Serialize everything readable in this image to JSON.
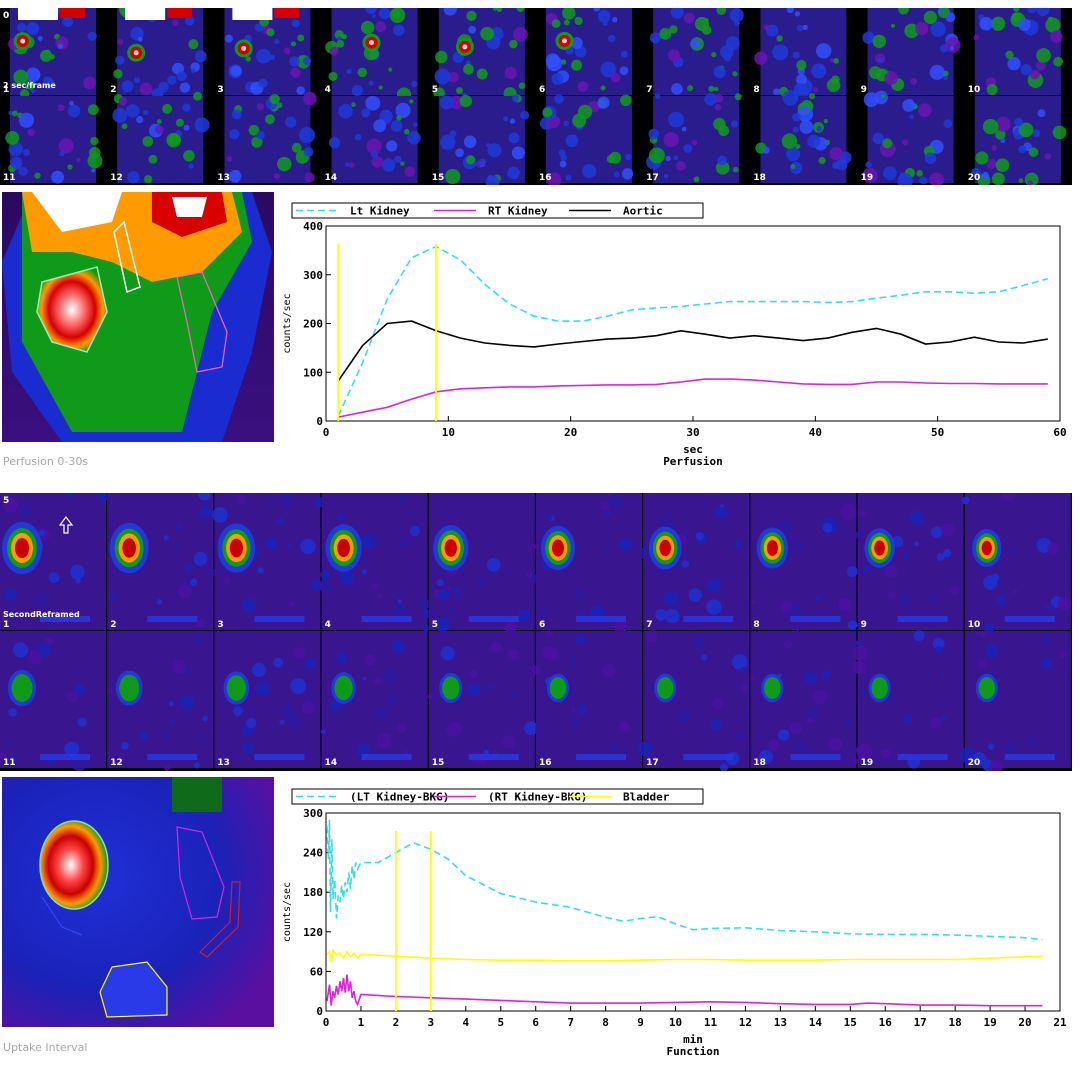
{
  "perfusion_strip": {
    "frame_rate_label": "2 sec/frame",
    "count_label": "0",
    "frames": [
      "1",
      "2",
      "3",
      "4",
      "5",
      "6",
      "7",
      "8",
      "9",
      "10",
      "11",
      "12",
      "13",
      "14",
      "15",
      "16",
      "17",
      "18",
      "19",
      "20"
    ]
  },
  "function_strip": {
    "label": "SecondReframed",
    "count_label": "5",
    "frames": [
      "1",
      "2",
      "3",
      "4",
      "5",
      "6",
      "7",
      "8",
      "9",
      "10",
      "11",
      "12",
      "13",
      "14",
      "15",
      "16",
      "17",
      "18",
      "19",
      "20"
    ]
  },
  "perfusion_roi_caption": "Perfusion 0-30s",
  "uptake_roi_caption": "Uptake Interval",
  "colors": {
    "cyan": "#33e0e8",
    "magenta": "#e020e0",
    "black": "#000000",
    "yellow": "#ffff00"
  },
  "chart_data": [
    {
      "type": "line",
      "title": "Perfusion",
      "xlabel": "sec",
      "ylabel": "counts/sec",
      "xlim": [
        0,
        60
      ],
      "ylim": [
        0,
        400
      ],
      "xticks": [
        0,
        10,
        20,
        30,
        40,
        50,
        60
      ],
      "yticks": [
        0,
        100,
        200,
        300,
        400
      ],
      "markers": [
        1,
        9
      ],
      "series": [
        {
          "name": "Lt Kidney",
          "style": "dashed",
          "color": "#33e0e8",
          "x": [
            1,
            3,
            5,
            7,
            9,
            11,
            13,
            15,
            17,
            19,
            21,
            23,
            25,
            27,
            29,
            31,
            33,
            35,
            37,
            39,
            41,
            43,
            45,
            47,
            49,
            51,
            53,
            55,
            57,
            59
          ],
          "y": [
            10,
            120,
            250,
            335,
            358,
            330,
            280,
            240,
            215,
            205,
            205,
            215,
            228,
            232,
            235,
            240,
            245,
            245,
            245,
            245,
            243,
            245,
            252,
            258,
            265,
            265,
            262,
            265,
            278,
            292
          ]
        },
        {
          "name": "RT Kidney",
          "style": "solid",
          "color": "#e020e0",
          "x": [
            1,
            3,
            5,
            7,
            9,
            11,
            13,
            15,
            17,
            19,
            21,
            23,
            25,
            27,
            29,
            31,
            33,
            35,
            37,
            39,
            41,
            43,
            45,
            47,
            49,
            51,
            53,
            55,
            57,
            59
          ],
          "y": [
            8,
            18,
            28,
            45,
            60,
            66,
            68,
            70,
            70,
            72,
            73,
            74,
            74,
            75,
            80,
            86,
            86,
            84,
            80,
            76,
            75,
            75,
            80,
            80,
            78,
            77,
            77,
            76,
            76,
            76
          ]
        },
        {
          "name": "Aortic",
          "style": "solid",
          "color": "#000000",
          "x": [
            1,
            3,
            5,
            7,
            9,
            11,
            13,
            15,
            17,
            19,
            21,
            23,
            25,
            27,
            29,
            31,
            33,
            35,
            37,
            39,
            41,
            43,
            45,
            47,
            49,
            51,
            53,
            55,
            57,
            59
          ],
          "y": [
            82,
            155,
            200,
            205,
            185,
            170,
            160,
            155,
            152,
            158,
            163,
            168,
            170,
            175,
            185,
            178,
            170,
            175,
            170,
            165,
            170,
            182,
            190,
            178,
            158,
            162,
            172,
            162,
            160,
            168
          ]
        }
      ]
    },
    {
      "type": "line",
      "title": "Function",
      "xlabel": "min",
      "ylabel": "counts/sec",
      "xlim": [
        0,
        21
      ],
      "ylim": [
        0,
        300
      ],
      "xticks": [
        0,
        1,
        2,
        3,
        4,
        5,
        6,
        7,
        8,
        9,
        10,
        11,
        12,
        13,
        14,
        15,
        16,
        17,
        18,
        19,
        20,
        21
      ],
      "yticks": [
        0,
        60,
        120,
        180,
        240,
        300
      ],
      "markers": [
        2,
        3
      ],
      "series": [
        {
          "name": "(LT Kidney-BKG)",
          "style": "dashed",
          "color": "#33e0e8",
          "x": [
            0.03,
            0.07,
            0.1,
            0.13,
            0.17,
            0.2,
            0.25,
            0.3,
            0.35,
            0.4,
            0.45,
            0.5,
            0.55,
            0.6,
            0.65,
            0.7,
            0.75,
            0.8,
            0.85,
            0.9,
            1,
            1.5,
            2,
            2.5,
            3,
            3.5,
            4,
            5,
            6,
            7,
            8,
            8.5,
            9,
            9.5,
            10,
            10.5,
            11,
            12,
            13,
            14,
            15,
            16,
            17,
            18,
            19,
            20,
            20.5
          ],
          "y": [
            280,
            230,
            290,
            150,
            260,
            170,
            200,
            140,
            175,
            165,
            190,
            170,
            195,
            180,
            210,
            185,
            220,
            200,
            225,
            215,
            225,
            225,
            240,
            255,
            245,
            230,
            205,
            178,
            165,
            157,
            142,
            136,
            140,
            143,
            132,
            123,
            125,
            126,
            122,
            120,
            117,
            116,
            116,
            115,
            113,
            111,
            108
          ]
        },
        {
          "name": "(RT Kidney-BKG)",
          "style": "solid",
          "color": "#e020e0",
          "x": [
            0.03,
            0.1,
            0.15,
            0.2,
            0.25,
            0.3,
            0.35,
            0.4,
            0.45,
            0.5,
            0.55,
            0.6,
            0.65,
            0.7,
            0.75,
            0.8,
            0.85,
            0.9,
            1,
            2,
            3,
            4,
            5,
            6,
            7,
            8,
            9,
            10,
            11,
            12,
            13,
            14,
            15,
            15.5,
            16,
            17,
            18,
            19,
            20,
            20.5
          ],
          "y": [
            15,
            40,
            8,
            30,
            20,
            38,
            25,
            45,
            30,
            50,
            28,
            55,
            30,
            45,
            20,
            30,
            15,
            10,
            25,
            22,
            20,
            18,
            16,
            14,
            12,
            12,
            12,
            13,
            14,
            13,
            11,
            10,
            10,
            12,
            11,
            9,
            9,
            8,
            8,
            8
          ]
        },
        {
          "name": "Bladder",
          "style": "solid",
          "color": "#ffff00",
          "x": [
            0.03,
            0.1,
            0.15,
            0.2,
            0.3,
            0.4,
            0.5,
            0.6,
            0.7,
            0.8,
            0.9,
            1,
            2,
            3,
            4,
            5,
            6,
            7,
            8,
            9,
            10,
            11,
            12,
            13,
            14,
            15,
            16,
            17,
            18,
            19,
            20,
            20.5
          ],
          "y": [
            85,
            90,
            75,
            92,
            85,
            88,
            80,
            90,
            82,
            88,
            80,
            86,
            83,
            80,
            78,
            77,
            77,
            76,
            76,
            77,
            78,
            78,
            77,
            77,
            77,
            78,
            78,
            78,
            78,
            80,
            82,
            83
          ]
        }
      ]
    }
  ]
}
